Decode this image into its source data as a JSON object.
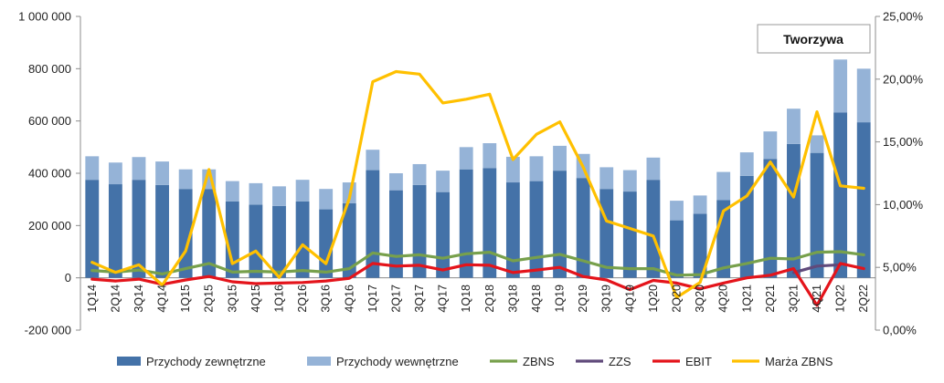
{
  "chart_data": {
    "type": "bar",
    "title": "Tworzywa",
    "categories": [
      "1Q14",
      "2Q14",
      "3Q14",
      "4Q14",
      "1Q15",
      "2Q15",
      "3Q15",
      "4Q15",
      "1Q16",
      "2Q16",
      "3Q16",
      "4Q16",
      "1Q17",
      "2Q17",
      "3Q17",
      "4Q17",
      "1Q18",
      "2Q18",
      "3Q18",
      "4Q18",
      "1Q19",
      "2Q19",
      "3Q19",
      "4Q19",
      "1Q20",
      "2Q20",
      "3Q20",
      "4Q20",
      "1Q21",
      "2Q21",
      "3Q21",
      "4Q21",
      "1Q22",
      "2Q22"
    ],
    "y_ticks": [
      "1 000 000",
      "800 000",
      "600 000",
      "400 000",
      "200 000",
      "0",
      "-200 000"
    ],
    "y2_ticks": [
      "25,00%",
      "20,00%",
      "15,00%",
      "10,00%",
      "5,00%",
      "0,00%"
    ],
    "ylim": [
      -200000,
      1000000
    ],
    "y2lim": [
      0,
      25
    ],
    "stacked_bars": [
      {
        "name": "Przychody zewnętrzne",
        "color": "#4472A8",
        "values": [
          375000,
          358000,
          375000,
          355000,
          340000,
          340000,
          292000,
          280000,
          275000,
          292000,
          262000,
          285000,
          412000,
          335000,
          355000,
          328000,
          415000,
          420000,
          365000,
          370000,
          410000,
          382000,
          340000,
          330000,
          375000,
          220000,
          245000,
          298000,
          390000,
          455000,
          512000,
          478000,
          632000,
          595000
        ]
      },
      {
        "name": "Przychody wewnętrzne",
        "color": "#95B3D7",
        "values": [
          90000,
          83000,
          87000,
          90000,
          75000,
          75000,
          78000,
          82000,
          75000,
          83000,
          78000,
          80000,
          78000,
          65000,
          80000,
          82000,
          85000,
          95000,
          98000,
          95000,
          95000,
          92000,
          83000,
          82000,
          85000,
          75000,
          70000,
          107000,
          90000,
          105000,
          135000,
          67000,
          203000,
          205000
        ]
      }
    ],
    "lines": [
      {
        "name": "ZBNS",
        "axis": "left",
        "color": "#77A04C",
        "values": [
          28000,
          22000,
          30000,
          15000,
          35000,
          55000,
          22000,
          25000,
          22000,
          28000,
          22000,
          35000,
          95000,
          82000,
          88000,
          75000,
          92000,
          98000,
          65000,
          78000,
          90000,
          65000,
          40000,
          35000,
          35000,
          10000,
          12000,
          38000,
          55000,
          75000,
          72000,
          98000,
          100000,
          88000
        ]
      },
      {
        "name": "ZZS",
        "axis": "left",
        "color": "#604A7B",
        "values": [
          null,
          null,
          null,
          null,
          null,
          null,
          null,
          null,
          null,
          null,
          null,
          null,
          null,
          null,
          null,
          null,
          null,
          null,
          null,
          null,
          null,
          null,
          null,
          null,
          null,
          null,
          null,
          null,
          null,
          null,
          20000,
          45000,
          50000,
          null
        ]
      },
      {
        "name": "EBIT",
        "axis": "left",
        "color": "#E4141B",
        "values": [
          -5000,
          -12000,
          -5000,
          -25000,
          -8000,
          5000,
          -15000,
          -22000,
          -20000,
          -18000,
          -12000,
          -2000,
          55000,
          45000,
          48000,
          30000,
          50000,
          48000,
          20000,
          30000,
          40000,
          5000,
          -8000,
          -45000,
          -10000,
          -20000,
          -42000,
          -20000,
          0,
          10000,
          35000,
          -105000,
          55000,
          35000
        ]
      },
      {
        "name": "Marża ZBNS",
        "axis": "right",
        "color": "#FFC000",
        "values": [
          5.4,
          4.6,
          5.2,
          3.6,
          6.3,
          12.8,
          5.3,
          6.3,
          4.2,
          6.8,
          5.3,
          10.5,
          19.8,
          20.6,
          20.4,
          18.1,
          18.4,
          18.8,
          13.6,
          15.6,
          16.6,
          13.0,
          8.7,
          8.1,
          7.5,
          2.6,
          3.8,
          9.5,
          10.7,
          13.4,
          10.6,
          17.4,
          11.5,
          11.3
        ]
      }
    ],
    "legend": [
      "Przychody zewnętrzne",
      "Przychody wewnętrzne",
      "ZBNS",
      "ZZS",
      "EBIT",
      "Marża ZBNS"
    ],
    "legend_position": "bottom",
    "grid": false
  }
}
